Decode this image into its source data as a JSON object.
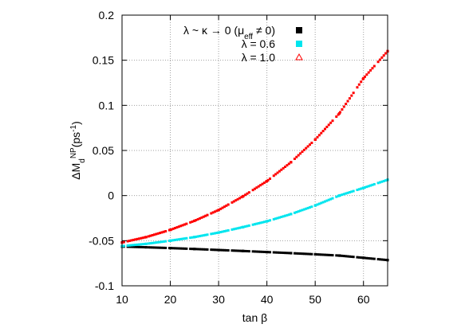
{
  "chart_data": {
    "type": "scatter",
    "xlabel": "tan β",
    "ylabel": {
      "base": "ΔM",
      "sub": "d",
      "sup": "NP",
      "unit_open": "(ps",
      "unit_sup": "-1",
      "unit_close": ")"
    },
    "xlim": [
      10,
      65
    ],
    "ylim": [
      -0.1,
      0.2
    ],
    "xticks": [
      10,
      20,
      30,
      40,
      50,
      60
    ],
    "yticks": [
      -0.1,
      -0.05,
      0,
      0.05,
      0.1,
      0.15,
      0.2
    ],
    "ytick_labels": [
      "-0.1",
      "-0.05",
      "0",
      "0.05",
      "0.1",
      "0.15",
      "0.2"
    ],
    "grid": true,
    "legend_position": "top-right",
    "series": [
      {
        "legend": {
          "pre": "λ ~ κ → 0 (μ",
          "sub": "eff",
          "post": " ≠ 0)"
        },
        "marker": "square",
        "color": "#000000",
        "x": [
          10,
          15,
          20,
          25,
          30,
          35,
          40,
          45,
          50,
          55,
          60,
          65
        ],
        "y": [
          -0.0565,
          -0.0573,
          -0.0582,
          -0.0592,
          -0.0603,
          -0.0614,
          -0.0626,
          -0.0638,
          -0.0651,
          -0.0665,
          -0.069,
          -0.0715
        ]
      },
      {
        "legend": {
          "pre": "λ = 0.6",
          "sub": "",
          "post": ""
        },
        "marker": "square",
        "color": "#00e5ee",
        "x": [
          10,
          15,
          20,
          25,
          30,
          35,
          40,
          45,
          50,
          55,
          60,
          65
        ],
        "y": [
          -0.056,
          -0.0535,
          -0.05,
          -0.046,
          -0.041,
          -0.035,
          -0.0285,
          -0.0205,
          -0.011,
          0.0,
          0.0085,
          0.0175
        ]
      },
      {
        "legend": {
          "pre": "λ = 1.0",
          "sub": "",
          "post": ""
        },
        "marker": "triangle",
        "color": "#ff0000",
        "x": [
          10,
          15,
          20,
          25,
          30,
          35,
          40,
          45,
          50,
          55,
          60,
          65
        ],
        "y": [
          -0.052,
          -0.046,
          -0.038,
          -0.028,
          -0.016,
          -0.001,
          0.016,
          0.037,
          0.062,
          0.091,
          0.13,
          0.16
        ]
      }
    ]
  },
  "colors": {
    "axis": "#000000",
    "grid": "#a0a0a0"
  }
}
